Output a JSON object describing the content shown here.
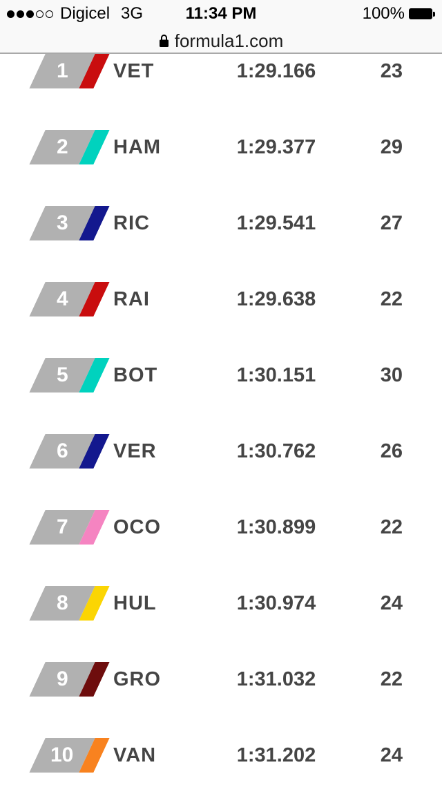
{
  "status_bar": {
    "signal_filled": 3,
    "signal_total": 5,
    "carrier": "Digicel",
    "network": "3G",
    "time": "11:34 PM",
    "battery_percent": "100%"
  },
  "url_bar": {
    "url": "formula1.com"
  },
  "timing_table": {
    "rows": [
      {
        "pos": "1",
        "code": "VET",
        "time": "1:29.166",
        "laps": "23",
        "team_color": "#c90d0e"
      },
      {
        "pos": "2",
        "code": "HAM",
        "time": "1:29.377",
        "laps": "29",
        "team_color": "#00d2be"
      },
      {
        "pos": "3",
        "code": "RIC",
        "time": "1:29.541",
        "laps": "27",
        "team_color": "#13188e"
      },
      {
        "pos": "4",
        "code": "RAI",
        "time": "1:29.638",
        "laps": "22",
        "team_color": "#c90d0e"
      },
      {
        "pos": "5",
        "code": "BOT",
        "time": "1:30.151",
        "laps": "30",
        "team_color": "#00d2be"
      },
      {
        "pos": "6",
        "code": "VER",
        "time": "1:30.762",
        "laps": "26",
        "team_color": "#13188e"
      },
      {
        "pos": "7",
        "code": "OCO",
        "time": "1:30.899",
        "laps": "22",
        "team_color": "#f584c1"
      },
      {
        "pos": "8",
        "code": "HUL",
        "time": "1:30.974",
        "laps": "24",
        "team_color": "#fbd503"
      },
      {
        "pos": "9",
        "code": "GRO",
        "time": "1:31.032",
        "laps": "22",
        "team_color": "#6e0d0d"
      },
      {
        "pos": "10",
        "code": "VAN",
        "time": "1:31.202",
        "laps": "24",
        "team_color": "#f8821f"
      }
    ]
  },
  "colors": {
    "badge_gray": "#b1b1b1",
    "row_text": "#454545",
    "chrome_bg": "#f9f9f9",
    "chrome_border": "#a9a9a9"
  }
}
